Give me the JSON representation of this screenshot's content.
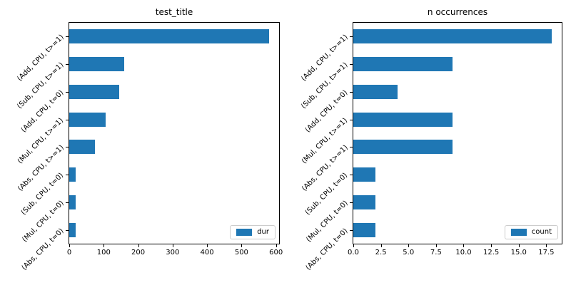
{
  "figure": {
    "background": "#ffffff",
    "text_color": "#000000",
    "spine_color": "#000000"
  },
  "chart_data": [
    {
      "type": "bar",
      "orientation": "horizontal",
      "title": "test_title",
      "legend": "dur",
      "legend_position": "lower right",
      "bar_color": "#1f77b4",
      "grid": false,
      "categories": [
        "(Add, CPU, t>=1)",
        "(Sub, CPU, t>=1)",
        "(Add, CPU, t=0)",
        "(Mul, CPU, t>=1)",
        "(Abs, CPU, t>=1)",
        "(Sub, CPU, t=0)",
        "(Mul, CPU, t=0)",
        "(Abs, CPU, t=0)"
      ],
      "values": [
        580,
        160,
        145,
        105,
        75,
        18,
        18,
        18
      ],
      "xlim": [
        0,
        609
      ],
      "x_ticks": [
        {
          "value": 0,
          "label": "0"
        },
        {
          "value": 100,
          "label": "100"
        },
        {
          "value": 200,
          "label": "200"
        },
        {
          "value": 300,
          "label": "300"
        },
        {
          "value": 400,
          "label": "400"
        },
        {
          "value": 500,
          "label": "500"
        },
        {
          "value": 600,
          "label": "600"
        }
      ]
    },
    {
      "type": "bar",
      "orientation": "horizontal",
      "title": "n occurrences",
      "legend": "count",
      "legend_position": "lower right",
      "bar_color": "#1f77b4",
      "grid": false,
      "categories": [
        "(Add, CPU, t>=1)",
        "(Sub, CPU, t>=1)",
        "(Add, CPU, t=0)",
        "(Mul, CPU, t>=1)",
        "(Abs, CPU, t>=1)",
        "(Sub, CPU, t=0)",
        "(Mul, CPU, t=0)",
        "(Abs, CPU, t=0)"
      ],
      "values": [
        18,
        9,
        4,
        9,
        9,
        2,
        2,
        2
      ],
      "xlim": [
        0,
        18.9
      ],
      "x_ticks": [
        {
          "value": 0,
          "label": "0.0"
        },
        {
          "value": 2.5,
          "label": "2.5"
        },
        {
          "value": 5,
          "label": "5.0"
        },
        {
          "value": 7.5,
          "label": "7.5"
        },
        {
          "value": 10,
          "label": "10.0"
        },
        {
          "value": 12.5,
          "label": "12.5"
        },
        {
          "value": 15,
          "label": "15.0"
        },
        {
          "value": 17.5,
          "label": "17.5"
        }
      ]
    }
  ]
}
